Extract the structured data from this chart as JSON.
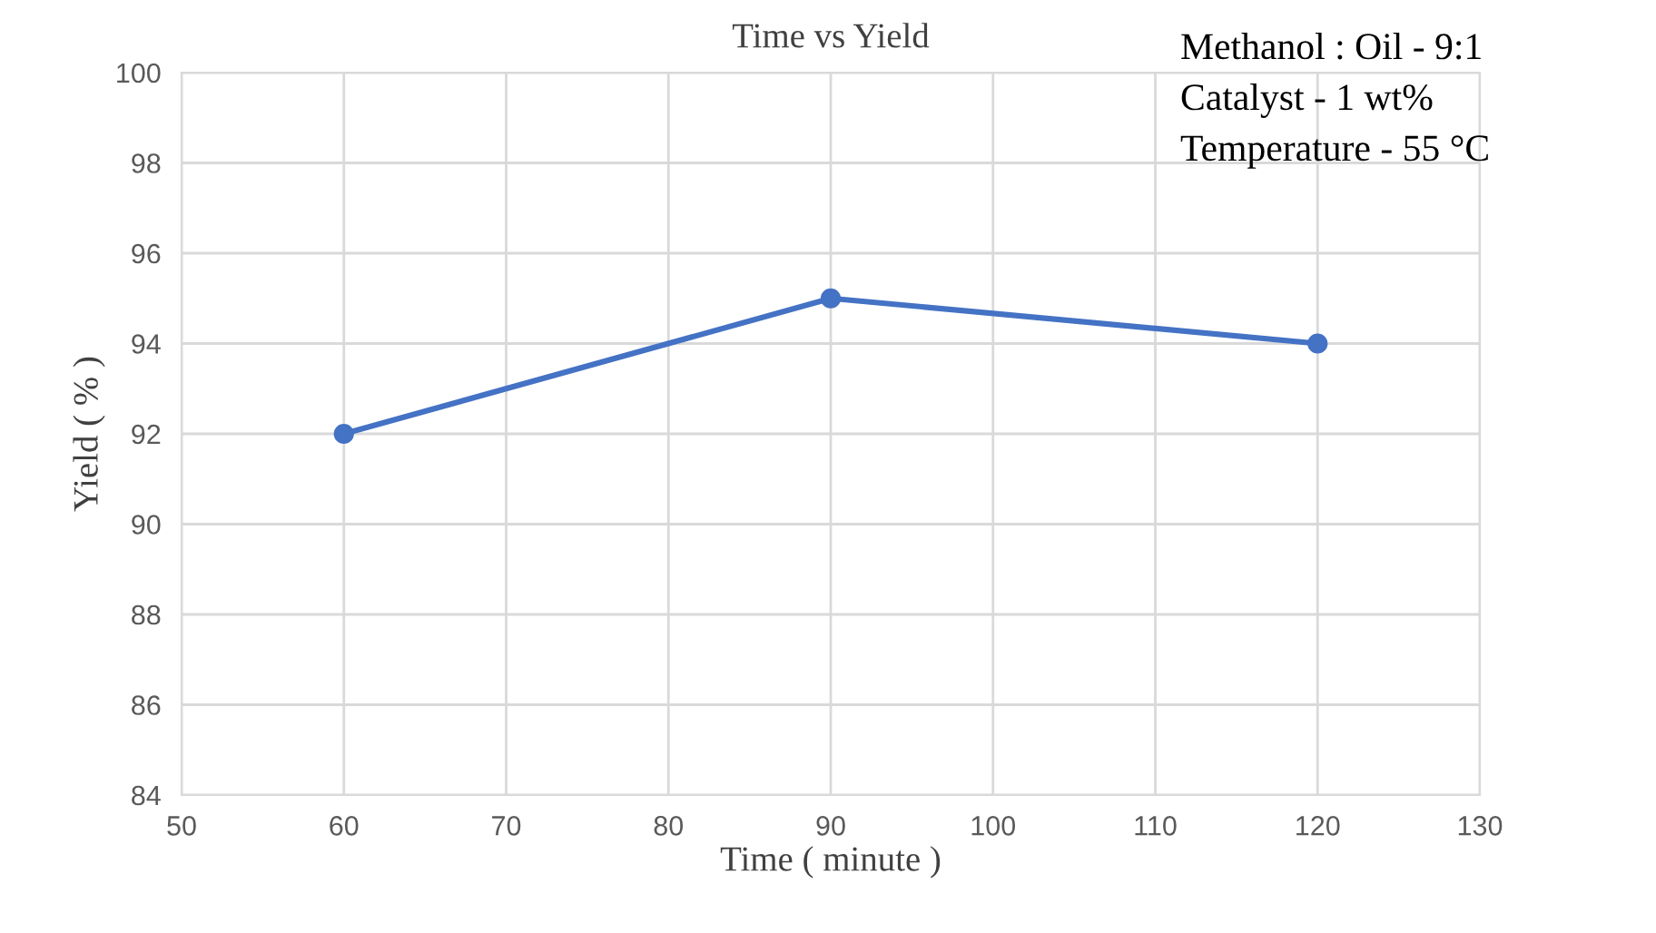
{
  "chart_data": {
    "type": "line",
    "title": "Time vs Yield",
    "xlabel": "Time ( minute )",
    "ylabel": "Yield ( % )",
    "x": [
      60,
      90,
      120
    ],
    "series": [
      {
        "color": "#4472c4",
        "values": [
          92,
          95,
          94
        ]
      }
    ],
    "xlim": [
      50,
      130
    ],
    "xticks": [
      50,
      60,
      70,
      80,
      90,
      100,
      110,
      120,
      130
    ],
    "ylim": [
      84,
      100
    ],
    "yticks": [
      84,
      86,
      88,
      90,
      92,
      94,
      96,
      98,
      100
    ],
    "grid": true,
    "marker": "circle",
    "line_style": "solid",
    "annotations": [
      "Methanol : Oil - 9:1",
      "Catalyst - 1 wt%",
      "Temperature - 55 °C"
    ]
  }
}
